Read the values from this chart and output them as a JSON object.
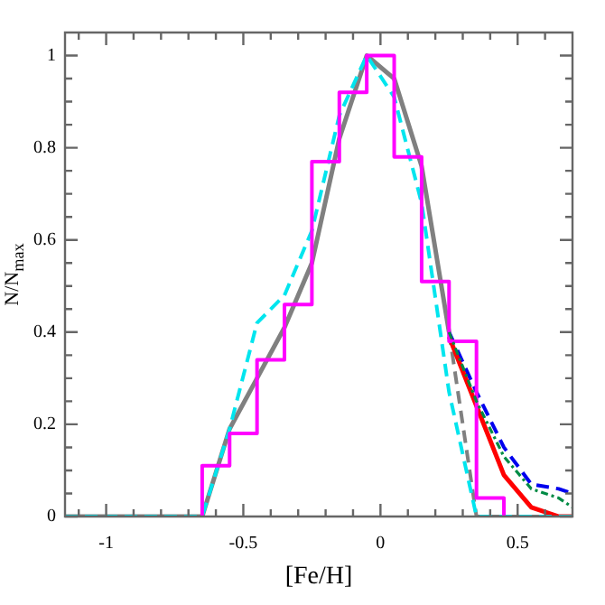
{
  "chart_data": {
    "type": "line",
    "xlabel": "[Fe/H]",
    "ylabel": "N/N$_{max}$",
    "xlim": [
      -1.15,
      0.7
    ],
    "ylim": [
      0,
      1.05
    ],
    "xticks": [
      {
        "value": -1.1,
        "label": null
      },
      -1,
      {
        "value": -0.9,
        "label": null
      },
      {
        "value": -0.8,
        "label": null
      },
      {
        "value": -0.7,
        "label": null
      },
      {
        "value": -0.6,
        "label": null
      },
      -0.5,
      {
        "value": -0.4,
        "label": null
      },
      {
        "value": -0.3,
        "label": null
      },
      {
        "value": -0.2,
        "label": null
      },
      {
        "value": -0.1,
        "label": null
      },
      0,
      {
        "value": 0.1,
        "label": null
      },
      {
        "value": 0.2,
        "label": null
      },
      {
        "value": 0.3,
        "label": null
      },
      {
        "value": 0.4,
        "label": null
      },
      0.5,
      {
        "value": 0.6,
        "label": null
      }
    ],
    "yticks": [
      0,
      {
        "value": 0.05,
        "label": null
      },
      {
        "value": 0.1,
        "label": null
      },
      {
        "value": 0.15,
        "label": null
      },
      0.2,
      {
        "value": 0.25,
        "label": null
      },
      {
        "value": 0.3,
        "label": null
      },
      {
        "value": 0.35,
        "label": null
      },
      0.4,
      {
        "value": 0.45,
        "label": null
      },
      {
        "value": 0.5,
        "label": null
      },
      {
        "value": 0.55,
        "label": null
      },
      0.6,
      {
        "value": 0.65,
        "label": null
      },
      {
        "value": 0.7,
        "label": null
      },
      {
        "value": 0.75,
        "label": null
      },
      0.8,
      {
        "value": 0.85,
        "label": null
      },
      {
        "value": 0.9,
        "label": null
      },
      {
        "value": 0.95,
        "label": null
      },
      1
    ],
    "grid": false,
    "legend": false,
    "marker": "none",
    "series": [
      {
        "color": "#008b45",
        "line_style": "dashdot",
        "x": [
          0.25,
          0.35,
          0.45,
          0.55,
          0.65,
          0.7
        ],
        "values": [
          0.4,
          0.25,
          0.13,
          0.06,
          0.04,
          0.02
        ]
      },
      {
        "type": "histogram",
        "color": "#ff00ff",
        "line_style": "solid",
        "bins": [
          -0.65,
          -0.55,
          -0.45,
          -0.35,
          -0.25,
          -0.15,
          -0.05,
          0.05,
          0.15,
          0.25,
          0.35,
          0.45
        ],
        "values": [
          0.11,
          0.18,
          0.34,
          0.46,
          0.77,
          0.92,
          1.0,
          0.78,
          0.51,
          0.38,
          0.04
        ]
      },
      {
        "color": "#00e5ee",
        "line_style": "dashed",
        "x": [
          -1.15,
          -0.65,
          -0.55,
          -0.45,
          -0.35,
          -0.25,
          -0.15,
          -0.05,
          0.05,
          0.15,
          0.25,
          0.35,
          0.7
        ],
        "values": [
          0,
          0,
          0.19,
          0.42,
          0.48,
          0.62,
          0.87,
          1.0,
          0.91,
          0.68,
          0.27,
          0,
          0
        ]
      },
      {
        "color": "#ff0000",
        "line_style": "solid",
        "x": [
          0.25,
          0.35,
          0.45,
          0.55,
          0.65,
          0.7
        ],
        "values": [
          0.39,
          0.24,
          0.09,
          0.02,
          0,
          0
        ]
      },
      {
        "color": "#0000ee",
        "line_style": "dashed",
        "x": [
          0.25,
          0.35,
          0.45,
          0.55,
          0.65,
          0.7
        ],
        "values": [
          0.4,
          0.27,
          0.15,
          0.07,
          0.06,
          0.05
        ]
      },
      {
        "color": "#808080",
        "line_style": "dashed",
        "x": [
          0.25,
          0.35,
          0.7
        ],
        "values": [
          0.4,
          0,
          0
        ]
      },
      {
        "color": "#808080",
        "line_style": "solid",
        "x": [
          -1.15,
          -0.65,
          -0.55,
          -0.45,
          -0.35,
          -0.25,
          -0.15,
          -0.05,
          0.05,
          0.15,
          0.25
        ],
        "values": [
          0,
          0,
          0.19,
          0.3,
          0.41,
          0.55,
          0.82,
          1.0,
          0.95,
          0.76,
          0.4
        ]
      }
    ]
  }
}
